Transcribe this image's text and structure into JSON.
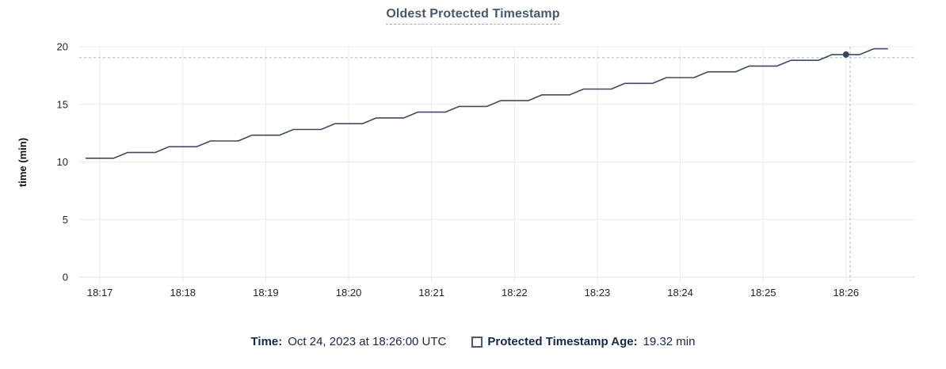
{
  "title": "Oldest Protected Timestamp",
  "tooltip": {
    "time_label": "Time:",
    "time_value": "Oct 24, 2023 at 18:26:00 UTC",
    "series_label": "Protected Timestamp Age:",
    "series_value": "19.32 min"
  },
  "colors": {
    "line": "#3e4b63",
    "dot": "#364560",
    "title": "#475872",
    "grid": "#ececec",
    "grid_zero": "#e2e2e2",
    "crosshair": "#a4b7c2",
    "axis_text": "#242424",
    "ylabel_text": "#111111",
    "legend_text": "#152849",
    "checkbox_border": "#475872"
  },
  "chart_data": {
    "type": "line",
    "title": "Oldest Protected Timestamp",
    "xlabel": "",
    "ylabel": "time (min)",
    "ylim": [
      0,
      20
    ],
    "yticks": [
      0,
      5,
      10,
      15,
      20
    ],
    "xtick_labels": [
      "18:17",
      "18:18",
      "18:19",
      "18:20",
      "18:21",
      "18:22",
      "18:23",
      "18:24",
      "18:25",
      "18:26"
    ],
    "x_domain": [
      "18:16:45",
      "18:26:50"
    ],
    "grid": true,
    "legend_position": "bottom",
    "series": [
      {
        "name": "Protected Timestamp Age",
        "unit": "min",
        "points": [
          [
            "18:16:50",
            10.32
          ],
          [
            "18:17:00",
            10.32
          ],
          [
            "18:17:10",
            10.32
          ],
          [
            "18:17:20",
            10.82
          ],
          [
            "18:17:30",
            10.82
          ],
          [
            "18:17:40",
            10.82
          ],
          [
            "18:17:50",
            11.32
          ],
          [
            "18:18:00",
            11.32
          ],
          [
            "18:18:10",
            11.32
          ],
          [
            "18:18:20",
            11.82
          ],
          [
            "18:18:30",
            11.82
          ],
          [
            "18:18:40",
            11.82
          ],
          [
            "18:18:50",
            12.32
          ],
          [
            "18:19:00",
            12.32
          ],
          [
            "18:19:10",
            12.32
          ],
          [
            "18:19:20",
            12.82
          ],
          [
            "18:19:30",
            12.82
          ],
          [
            "18:19:40",
            12.82
          ],
          [
            "18:19:50",
            13.32
          ],
          [
            "18:20:00",
            13.32
          ],
          [
            "18:20:10",
            13.32
          ],
          [
            "18:20:20",
            13.82
          ],
          [
            "18:20:30",
            13.82
          ],
          [
            "18:20:40",
            13.82
          ],
          [
            "18:20:50",
            14.32
          ],
          [
            "18:21:00",
            14.32
          ],
          [
            "18:21:10",
            14.32
          ],
          [
            "18:21:20",
            14.82
          ],
          [
            "18:21:30",
            14.82
          ],
          [
            "18:21:40",
            14.82
          ],
          [
            "18:21:50",
            15.32
          ],
          [
            "18:22:00",
            15.32
          ],
          [
            "18:22:10",
            15.32
          ],
          [
            "18:22:20",
            15.82
          ],
          [
            "18:22:30",
            15.82
          ],
          [
            "18:22:40",
            15.82
          ],
          [
            "18:22:50",
            16.32
          ],
          [
            "18:23:00",
            16.32
          ],
          [
            "18:23:10",
            16.32
          ],
          [
            "18:23:20",
            16.82
          ],
          [
            "18:23:30",
            16.82
          ],
          [
            "18:23:40",
            16.82
          ],
          [
            "18:23:50",
            17.32
          ],
          [
            "18:24:00",
            17.32
          ],
          [
            "18:24:10",
            17.32
          ],
          [
            "18:24:20",
            17.82
          ],
          [
            "18:24:30",
            17.82
          ],
          [
            "18:24:40",
            17.82
          ],
          [
            "18:24:50",
            18.32
          ],
          [
            "18:25:00",
            18.32
          ],
          [
            "18:25:10",
            18.32
          ],
          [
            "18:25:20",
            18.82
          ],
          [
            "18:25:30",
            18.82
          ],
          [
            "18:25:40",
            18.82
          ],
          [
            "18:25:50",
            19.32
          ],
          [
            "18:26:00",
            19.32
          ],
          [
            "18:26:10",
            19.32
          ],
          [
            "18:26:20",
            19.82
          ],
          [
            "18:26:30",
            19.82
          ]
        ]
      }
    ],
    "highlight": {
      "point_time": "18:26:00",
      "point_value": 19.32,
      "crosshair_time": "18:26:03",
      "crosshair_value": 19.05
    }
  }
}
